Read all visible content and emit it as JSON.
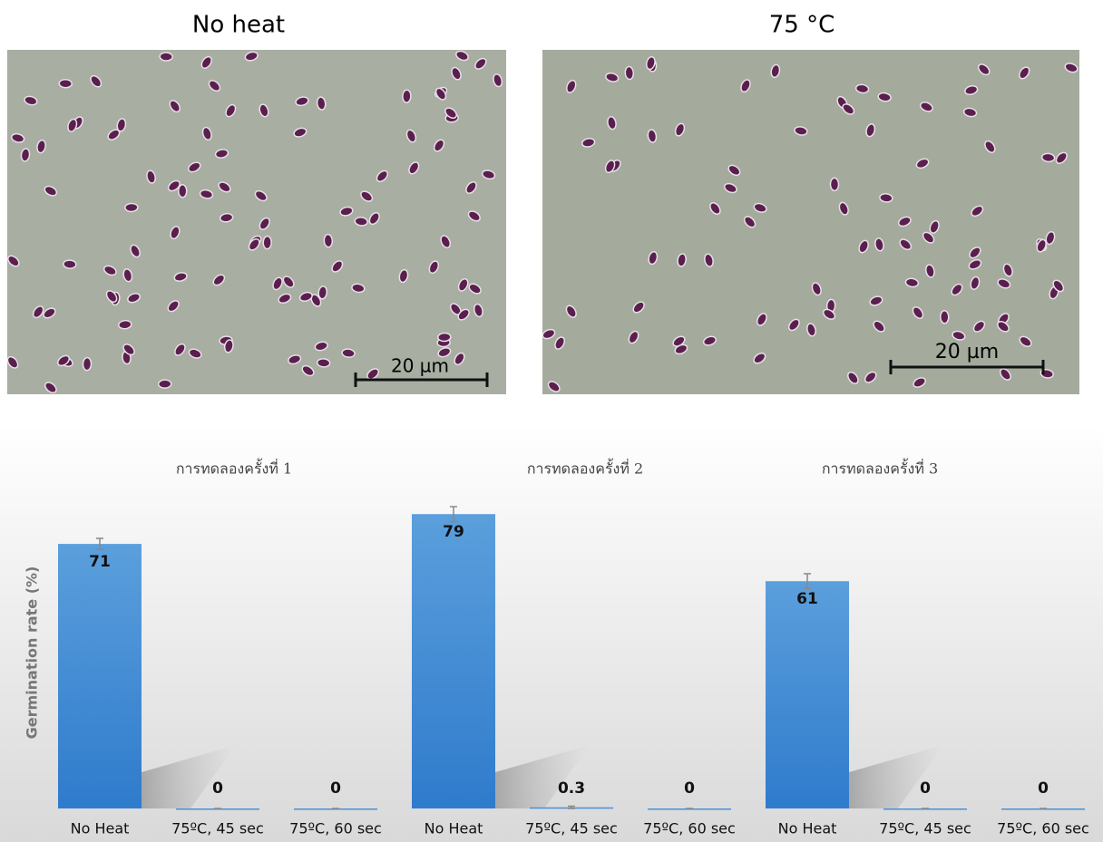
{
  "micrographs": [
    {
      "title": "No heat",
      "scale_label": "20 µm"
    },
    {
      "title": "75 °C",
      "scale_label": "20 µm"
    }
  ],
  "chart_data": {
    "type": "bar",
    "y_label": "Germination rate (%)",
    "color": "#4a90d6",
    "ylim": [
      0,
      90
    ],
    "groups": [
      {
        "title": "การทดลองครั้งที่ 1",
        "categories": [
          "No Heat",
          "75ºC, 45 sec",
          "75ºC, 60 sec"
        ],
        "values": [
          71,
          0,
          0
        ],
        "errors": [
          1.5,
          0,
          0
        ]
      },
      {
        "title": "การทดลองครั้งที่ 2",
        "categories": [
          "No Heat",
          "75ºC, 45 sec",
          "75ºC, 60 sec"
        ],
        "values": [
          79,
          0.3,
          0
        ],
        "errors": [
          2,
          0.3,
          0
        ]
      },
      {
        "title": "การทดลองครั้งที่ 3",
        "categories": [
          "No Heat",
          "75ºC, 45 sec",
          "75ºC, 60 sec"
        ],
        "values": [
          61,
          0,
          0
        ],
        "errors": [
          2,
          0,
          0
        ]
      }
    ]
  }
}
